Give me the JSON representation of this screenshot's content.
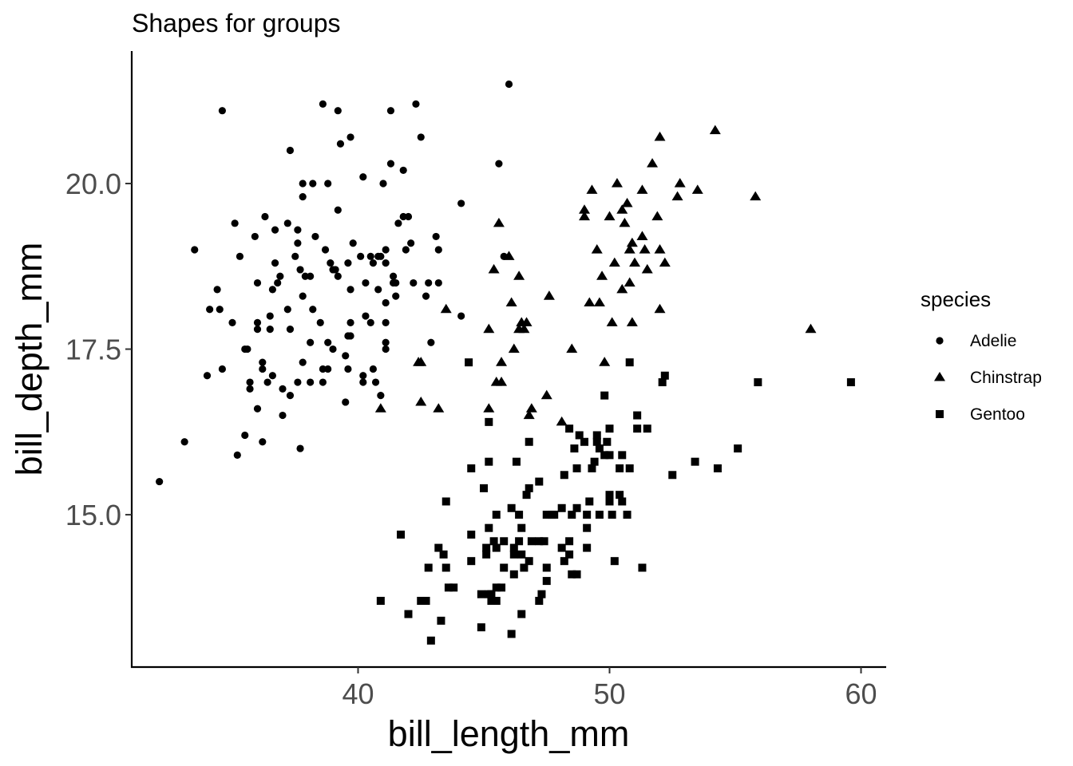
{
  "chart_data": {
    "type": "scatter",
    "title": "Shapes for groups",
    "xlabel": "bill_length_mm",
    "ylabel": "bill_depth_mm",
    "xlim": [
      31.0,
      61.0
    ],
    "ylim": [
      12.7,
      22.0
    ],
    "x_ticks": [
      40,
      50,
      60
    ],
    "x_tick_labels": [
      "40",
      "50",
      "60"
    ],
    "y_ticks": [
      15.0,
      17.5,
      20.0
    ],
    "y_tick_labels": [
      "15.0",
      "17.5",
      "20.0"
    ],
    "grid": false,
    "legend": {
      "title": "species",
      "position": "right"
    },
    "series": [
      {
        "name": "Adelie",
        "shape": "circle",
        "color": "#000000",
        "points": [
          [
            32.1,
            15.5
          ],
          [
            33.1,
            16.1
          ],
          [
            33.5,
            19.0
          ],
          [
            34.0,
            17.1
          ],
          [
            34.1,
            18.1
          ],
          [
            34.4,
            18.4
          ],
          [
            34.5,
            18.1
          ],
          [
            34.6,
            21.1
          ],
          [
            34.6,
            17.2
          ],
          [
            35.0,
            17.9
          ],
          [
            35.1,
            19.4
          ],
          [
            35.2,
            15.9
          ],
          [
            35.3,
            18.9
          ],
          [
            35.5,
            16.2
          ],
          [
            35.5,
            17.5
          ],
          [
            35.6,
            17.5
          ],
          [
            35.7,
            17.0
          ],
          [
            35.7,
            16.9
          ],
          [
            35.9,
            19.2
          ],
          [
            36.0,
            18.5
          ],
          [
            36.0,
            17.9
          ],
          [
            36.0,
            17.8
          ],
          [
            36.0,
            16.6
          ],
          [
            36.2,
            17.3
          ],
          [
            36.2,
            17.2
          ],
          [
            36.2,
            16.1
          ],
          [
            36.3,
            19.5
          ],
          [
            36.4,
            17.0
          ],
          [
            36.5,
            18.0
          ],
          [
            36.5,
            17.8
          ],
          [
            36.6,
            18.4
          ],
          [
            36.6,
            17.1
          ],
          [
            36.7,
            19.3
          ],
          [
            36.7,
            18.8
          ],
          [
            36.8,
            18.5
          ],
          [
            36.9,
            18.6
          ],
          [
            37.0,
            16.9
          ],
          [
            37.0,
            16.5
          ],
          [
            37.2,
            19.4
          ],
          [
            37.2,
            18.1
          ],
          [
            37.3,
            20.5
          ],
          [
            37.3,
            17.8
          ],
          [
            37.3,
            16.8
          ],
          [
            37.5,
            18.9
          ],
          [
            37.6,
            19.3
          ],
          [
            37.6,
            19.1
          ],
          [
            37.6,
            17.0
          ],
          [
            37.7,
            18.7
          ],
          [
            37.7,
            16.0
          ],
          [
            37.8,
            20.0
          ],
          [
            37.8,
            19.8
          ],
          [
            37.8,
            18.3
          ],
          [
            37.8,
            17.3
          ],
          [
            37.9,
            18.6
          ],
          [
            38.1,
            18.6
          ],
          [
            38.1,
            17.6
          ],
          [
            38.1,
            17.0
          ],
          [
            38.2,
            20.0
          ],
          [
            38.2,
            18.1
          ],
          [
            38.3,
            19.2
          ],
          [
            38.5,
            17.9
          ],
          [
            38.6,
            21.2
          ],
          [
            38.6,
            17.2
          ],
          [
            38.6,
            17.0
          ],
          [
            38.7,
            19.0
          ],
          [
            38.8,
            20.0
          ],
          [
            38.8,
            17.6
          ],
          [
            38.8,
            17.2
          ],
          [
            38.9,
            18.8
          ],
          [
            39.0,
            18.7
          ],
          [
            39.0,
            17.5
          ],
          [
            39.1,
            18.7
          ],
          [
            39.2,
            21.1
          ],
          [
            39.2,
            18.6
          ],
          [
            39.2,
            19.6
          ],
          [
            39.3,
            20.6
          ],
          [
            39.5,
            17.4
          ],
          [
            39.5,
            16.7
          ],
          [
            39.6,
            18.8
          ],
          [
            39.6,
            17.7
          ],
          [
            39.6,
            17.2
          ],
          [
            39.7,
            20.7
          ],
          [
            39.7,
            18.4
          ],
          [
            39.8,
            19.1
          ],
          [
            39.7,
            17.9
          ],
          [
            39.7,
            17.7
          ],
          [
            40.1,
            18.9
          ],
          [
            40.2,
            20.1
          ],
          [
            40.2,
            17.1
          ],
          [
            40.2,
            17.0
          ],
          [
            40.3,
            18.5
          ],
          [
            40.3,
            18.0
          ],
          [
            40.5,
            18.9
          ],
          [
            40.5,
            17.9
          ],
          [
            40.6,
            18.8
          ],
          [
            40.6,
            17.2
          ],
          [
            40.7,
            17.0
          ],
          [
            40.8,
            18.4
          ],
          [
            40.8,
            18.9
          ],
          [
            40.9,
            18.9
          ],
          [
            40.9,
            16.8
          ],
          [
            41.0,
            20.0
          ],
          [
            41.1,
            19.0
          ],
          [
            41.1,
            18.8
          ],
          [
            41.1,
            18.2
          ],
          [
            41.1,
            17.6
          ],
          [
            41.1,
            17.5
          ],
          [
            41.1,
            17.9
          ],
          [
            41.3,
            21.1
          ],
          [
            41.3,
            20.3
          ],
          [
            41.4,
            18.6
          ],
          [
            41.4,
            18.5
          ],
          [
            41.5,
            18.5
          ],
          [
            41.5,
            18.3
          ],
          [
            41.6,
            19.4
          ],
          [
            41.8,
            19.5
          ],
          [
            41.8,
            20.2
          ],
          [
            41.9,
            19.0
          ],
          [
            42.0,
            19.5
          ],
          [
            42.1,
            19.1
          ],
          [
            42.2,
            18.5
          ],
          [
            42.3,
            21.2
          ],
          [
            42.5,
            20.7
          ],
          [
            42.7,
            18.3
          ],
          [
            42.8,
            18.5
          ],
          [
            42.9,
            17.6
          ],
          [
            43.1,
            19.2
          ],
          [
            43.2,
            19.0
          ],
          [
            43.2,
            18.5
          ],
          [
            44.1,
            19.7
          ],
          [
            44.1,
            18.0
          ],
          [
            45.6,
            20.3
          ],
          [
            46.0,
            21.5
          ],
          [
            45.8,
            18.9
          ]
        ]
      },
      {
        "name": "Chinstrap",
        "shape": "triangle",
        "color": "#000000",
        "points": [
          [
            40.9,
            16.6
          ],
          [
            42.4,
            17.3
          ],
          [
            42.5,
            16.7
          ],
          [
            42.5,
            17.3
          ],
          [
            43.2,
            16.6
          ],
          [
            43.5,
            18.1
          ],
          [
            45.2,
            17.8
          ],
          [
            45.2,
            16.6
          ],
          [
            45.4,
            18.7
          ],
          [
            45.5,
            17.0
          ],
          [
            45.6,
            19.4
          ],
          [
            45.7,
            17.3
          ],
          [
            45.7,
            17.0
          ],
          [
            46.0,
            18.9
          ],
          [
            46.1,
            18.2
          ],
          [
            46.2,
            17.5
          ],
          [
            46.4,
            18.6
          ],
          [
            46.4,
            17.8
          ],
          [
            46.5,
            17.9
          ],
          [
            46.6,
            17.8
          ],
          [
            46.7,
            17.9
          ],
          [
            46.8,
            16.5
          ],
          [
            46.9,
            16.6
          ],
          [
            47.5,
            16.8
          ],
          [
            47.6,
            18.3
          ],
          [
            48.1,
            16.4
          ],
          [
            48.5,
            17.5
          ],
          [
            49.0,
            19.6
          ],
          [
            49.0,
            19.5
          ],
          [
            49.2,
            18.2
          ],
          [
            49.3,
            19.9
          ],
          [
            49.5,
            19.0
          ],
          [
            49.6,
            18.2
          ],
          [
            49.7,
            18.6
          ],
          [
            49.8,
            17.3
          ],
          [
            50.0,
            19.5
          ],
          [
            50.1,
            17.9
          ],
          [
            50.2,
            18.8
          ],
          [
            50.3,
            20.0
          ],
          [
            50.5,
            19.6
          ],
          [
            50.5,
            18.4
          ],
          [
            50.6,
            19.4
          ],
          [
            50.7,
            19.7
          ],
          [
            50.8,
            19.0
          ],
          [
            50.8,
            18.5
          ],
          [
            50.9,
            19.1
          ],
          [
            50.9,
            17.9
          ],
          [
            51.0,
            18.8
          ],
          [
            51.3,
            19.2
          ],
          [
            51.3,
            19.9
          ],
          [
            51.4,
            19.0
          ],
          [
            51.5,
            18.7
          ],
          [
            51.7,
            20.3
          ],
          [
            51.9,
            19.5
          ],
          [
            52.0,
            20.7
          ],
          [
            52.0,
            19.0
          ],
          [
            52.0,
            18.1
          ],
          [
            52.2,
            18.8
          ],
          [
            52.7,
            19.8
          ],
          [
            52.8,
            20.0
          ],
          [
            53.5,
            19.9
          ],
          [
            54.2,
            20.8
          ],
          [
            55.8,
            19.8
          ],
          [
            58.0,
            17.8
          ]
        ]
      },
      {
        "name": "Gentoo",
        "shape": "square",
        "color": "#000000",
        "points": [
          [
            40.9,
            13.7
          ],
          [
            41.7,
            14.7
          ],
          [
            42.0,
            13.5
          ],
          [
            42.5,
            13.7
          ],
          [
            42.7,
            13.7
          ],
          [
            42.8,
            14.2
          ],
          [
            42.9,
            13.1
          ],
          [
            43.2,
            14.5
          ],
          [
            43.3,
            13.4
          ],
          [
            43.4,
            14.4
          ],
          [
            43.5,
            14.2
          ],
          [
            43.5,
            15.2
          ],
          [
            43.6,
            13.9
          ],
          [
            43.8,
            13.9
          ],
          [
            44.4,
            17.3
          ],
          [
            44.5,
            14.3
          ],
          [
            44.5,
            15.7
          ],
          [
            44.5,
            14.7
          ],
          [
            44.9,
            13.3
          ],
          [
            44.9,
            13.8
          ],
          [
            45.0,
            15.4
          ],
          [
            45.1,
            14.5
          ],
          [
            45.1,
            14.4
          ],
          [
            45.2,
            13.8
          ],
          [
            45.2,
            14.8
          ],
          [
            45.2,
            15.8
          ],
          [
            45.2,
            16.4
          ],
          [
            45.3,
            13.7
          ],
          [
            45.3,
            13.8
          ],
          [
            45.4,
            14.6
          ],
          [
            45.5,
            13.7
          ],
          [
            45.5,
            13.9
          ],
          [
            45.5,
            14.5
          ],
          [
            45.5,
            15.0
          ],
          [
            45.7,
            13.9
          ],
          [
            45.8,
            14.2
          ],
          [
            45.8,
            14.6
          ],
          [
            46.1,
            13.2
          ],
          [
            46.1,
            15.1
          ],
          [
            46.2,
            14.1
          ],
          [
            46.2,
            14.4
          ],
          [
            46.2,
            14.5
          ],
          [
            46.3,
            15.8
          ],
          [
            46.4,
            14.6
          ],
          [
            46.4,
            15.0
          ],
          [
            46.5,
            13.5
          ],
          [
            46.5,
            14.4
          ],
          [
            46.5,
            14.8
          ],
          [
            46.6,
            14.2
          ],
          [
            46.7,
            15.3
          ],
          [
            46.8,
            14.3
          ],
          [
            46.8,
            15.4
          ],
          [
            46.8,
            16.1
          ],
          [
            46.9,
            14.6
          ],
          [
            47.2,
            13.7
          ],
          [
            47.2,
            14.6
          ],
          [
            47.2,
            15.5
          ],
          [
            47.3,
            13.8
          ],
          [
            47.4,
            14.6
          ],
          [
            47.5,
            14.0
          ],
          [
            47.5,
            14.2
          ],
          [
            47.5,
            15.0
          ],
          [
            47.7,
            15.0
          ],
          [
            47.8,
            15.0
          ],
          [
            48.1,
            15.1
          ],
          [
            48.1,
            14.5
          ],
          [
            48.2,
            14.3
          ],
          [
            48.2,
            15.6
          ],
          [
            48.4,
            14.4
          ],
          [
            48.4,
            14.6
          ],
          [
            48.4,
            16.3
          ],
          [
            48.5,
            14.1
          ],
          [
            48.5,
            15.0
          ],
          [
            48.6,
            16.0
          ],
          [
            48.7,
            14.1
          ],
          [
            48.7,
            15.1
          ],
          [
            48.7,
            15.7
          ],
          [
            48.8,
            16.2
          ],
          [
            49.0,
            16.1
          ],
          [
            49.1,
            14.5
          ],
          [
            49.1,
            14.8
          ],
          [
            49.1,
            15.0
          ],
          [
            49.2,
            15.2
          ],
          [
            49.3,
            15.7
          ],
          [
            49.4,
            15.8
          ],
          [
            49.5,
            16.1
          ],
          [
            49.5,
            16.2
          ],
          [
            49.6,
            15.0
          ],
          [
            49.6,
            16.0
          ],
          [
            49.8,
            15.9
          ],
          [
            49.8,
            16.8
          ],
          [
            49.9,
            16.1
          ],
          [
            50.0,
            15.2
          ],
          [
            50.0,
            15.3
          ],
          [
            50.0,
            15.9
          ],
          [
            50.0,
            16.3
          ],
          [
            50.1,
            15.0
          ],
          [
            50.2,
            14.3
          ],
          [
            50.4,
            15.3
          ],
          [
            50.4,
            15.7
          ],
          [
            50.5,
            15.2
          ],
          [
            50.5,
            15.9
          ],
          [
            50.7,
            15.0
          ],
          [
            50.8,
            15.7
          ],
          [
            50.8,
            17.3
          ],
          [
            51.1,
            16.3
          ],
          [
            51.1,
            16.5
          ],
          [
            51.3,
            14.2
          ],
          [
            51.5,
            16.3
          ],
          [
            52.1,
            17.0
          ],
          [
            52.2,
            17.1
          ],
          [
            52.5,
            15.6
          ],
          [
            53.4,
            15.8
          ],
          [
            54.3,
            15.7
          ],
          [
            55.1,
            16.0
          ],
          [
            55.9,
            17.0
          ],
          [
            59.6,
            17.0
          ]
        ]
      }
    ]
  }
}
